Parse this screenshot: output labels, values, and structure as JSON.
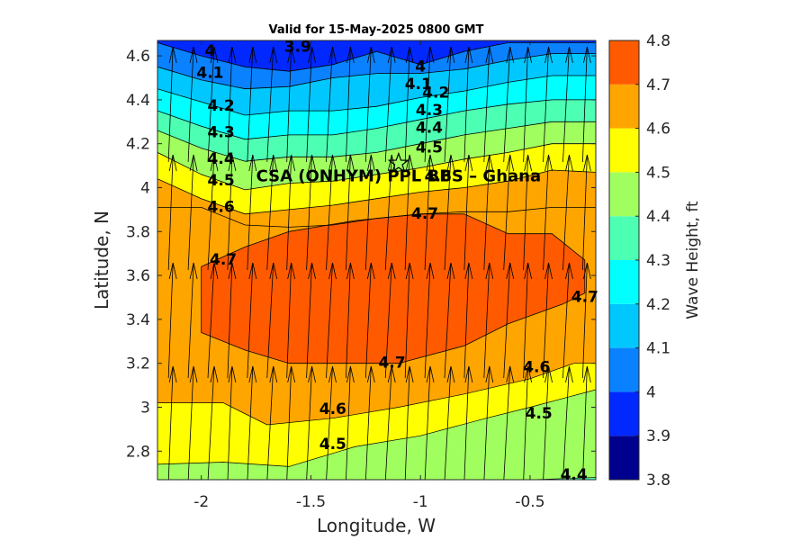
{
  "chart_data": {
    "type": "heatmap",
    "subtype": "filled contour with wave direction arrows",
    "title": "Valid for 15-May-2025 0800 GMT",
    "xlabel": "Longitude, W",
    "ylabel": "Latitude, N",
    "colorbar_label": "Wave Height, ft",
    "xlim": [
      -2.2,
      -0.2
    ],
    "ylim": [
      2.67,
      4.67
    ],
    "x_ticks": [
      -2,
      -1.5,
      -1,
      -0.5
    ],
    "x_tick_labels": [
      "-2",
      "-1.5",
      "-1",
      "-0.5"
    ],
    "y_ticks": [
      2.8,
      3.0,
      3.2,
      3.4,
      3.6,
      3.8,
      4.0,
      4.2,
      4.4,
      4.6
    ],
    "y_tick_labels": [
      "2.8",
      "3",
      "3.2",
      "3.4",
      "3.6",
      "3.8",
      "4",
      "4.2",
      "4.4",
      "4.6"
    ],
    "colorbar_levels": [
      3.8,
      3.9,
      4.0,
      4.1,
      4.2,
      4.3,
      4.4,
      4.5,
      4.6,
      4.7,
      4.8
    ],
    "colorbar_tick_labels": [
      "3.8",
      "3.9",
      "4",
      "4.1",
      "4.2",
      "4.3",
      "4.4",
      "4.5",
      "4.6",
      "4.7",
      "4.8"
    ],
    "colors": [
      "#00008f",
      "#0028ff",
      "#0a82ff",
      "#00c8ff",
      "#00ffff",
      "#4dffb3",
      "#a0ff5f",
      "#ffff00",
      "#ffa500",
      "#ff5a00"
    ],
    "site_label": "CSA (ONHYM) PPL BBS – Ghana",
    "site_location": {
      "lon": -1.1,
      "lat": 4.11
    },
    "contour_levels_bands": {
      "3.9": {
        "x": [
          -2.2,
          -2.0,
          -1.8,
          -1.6,
          -1.4,
          -1.2,
          -1.0,
          -0.8,
          -0.6,
          -0.4,
          -0.2
        ],
        "y": [
          4.75,
          4.75,
          4.75,
          4.72,
          4.72,
          4.72,
          4.72,
          4.75,
          4.75,
          4.75,
          4.75
        ]
      },
      "4.0": {
        "x": [
          -2.2,
          -2.0,
          -1.8,
          -1.6,
          -1.4,
          -1.2,
          -1.0,
          -0.8,
          -0.6,
          -0.4,
          -0.2
        ],
        "y": [
          4.66,
          4.6,
          4.55,
          4.53,
          4.56,
          4.62,
          4.56,
          4.62,
          4.66,
          4.66,
          4.66
        ]
      },
      "4.1": {
        "x": [
          -2.2,
          -2.0,
          -1.8,
          -1.6,
          -1.4,
          -1.2,
          -1.0,
          -0.8,
          -0.6,
          -0.4,
          -0.2
        ],
        "y": [
          4.55,
          4.49,
          4.45,
          4.46,
          4.5,
          4.52,
          4.52,
          4.54,
          4.58,
          4.61,
          4.61
        ]
      },
      "4.2": {
        "x": [
          -2.2,
          -2.0,
          -1.8,
          -1.6,
          -1.4,
          -1.2,
          -1.0,
          -0.8,
          -0.6,
          -0.4,
          -0.2
        ],
        "y": [
          4.45,
          4.39,
          4.33,
          4.35,
          4.35,
          4.37,
          4.41,
          4.44,
          4.48,
          4.51,
          4.51
        ]
      },
      "4.3": {
        "x": [
          -2.2,
          -2.0,
          -1.8,
          -1.6,
          -1.4,
          -1.2,
          -1.0,
          -0.8,
          -0.6,
          -0.4,
          -0.2
        ],
        "y": [
          4.35,
          4.28,
          4.22,
          4.24,
          4.24,
          4.27,
          4.31,
          4.35,
          4.38,
          4.4,
          4.4
        ]
      },
      "4.4": {
        "x": [
          -2.2,
          -2.0,
          -1.8,
          -1.6,
          -1.4,
          -1.2,
          -1.0,
          -0.8,
          -0.6,
          -0.4,
          -0.2
        ],
        "y": [
          4.26,
          4.18,
          4.12,
          4.14,
          4.14,
          4.16,
          4.2,
          4.24,
          4.27,
          4.3,
          4.3
        ]
      },
      "4.5": {
        "x": [
          -2.2,
          -2.0,
          -1.8,
          -1.6,
          -1.4,
          -1.2,
          -1.0,
          -0.8,
          -0.6,
          -0.4,
          -0.2
        ],
        "y": [
          4.16,
          4.06,
          3.99,
          4.02,
          4.03,
          4.06,
          4.09,
          4.13,
          4.16,
          4.2,
          4.2
        ]
      },
      "4.6": {
        "x": [
          -2.2,
          -2.0,
          -1.8,
          -1.6,
          -1.4,
          -1.2,
          -1.0,
          -0.8,
          -0.6,
          -0.4,
          -0.2
        ],
        "y": [
          4.04,
          3.95,
          3.88,
          3.9,
          3.92,
          3.95,
          3.98,
          4.0,
          4.03,
          4.08,
          4.07
        ]
      },
      "4.7": {
        "x": [
          -2.2,
          -2.0,
          -1.8,
          -1.6,
          -1.4,
          -1.2,
          -1.0,
          -0.8,
          -0.6,
          -0.4,
          -0.2
        ],
        "y": [
          3.91,
          3.91,
          3.83,
          3.82,
          3.83,
          3.86,
          3.88,
          3.89,
          3.89,
          3.91,
          3.91
        ]
      }
    },
    "contour_labels": [
      {
        "text": "3.9",
        "lon": -1.56,
        "lat": 4.64
      },
      {
        "text": "4",
        "lon": -1.96,
        "lat": 4.62
      },
      {
        "text": "4",
        "lon": -1.0,
        "lat": 4.55
      },
      {
        "text": "4.1",
        "lon": -1.96,
        "lat": 4.52
      },
      {
        "text": "4.1",
        "lon": -1.01,
        "lat": 4.47
      },
      {
        "text": "4.2",
        "lon": -0.93,
        "lat": 4.43
      },
      {
        "text": "4.2",
        "lon": -1.91,
        "lat": 4.37
      },
      {
        "text": "4.3",
        "lon": -0.96,
        "lat": 4.35
      },
      {
        "text": "4.3",
        "lon": -1.91,
        "lat": 4.25
      },
      {
        "text": "4.4",
        "lon": -0.96,
        "lat": 4.27
      },
      {
        "text": "4.4",
        "lon": -1.91,
        "lat": 4.13
      },
      {
        "text": "4.5",
        "lon": -0.96,
        "lat": 4.18
      },
      {
        "text": "4.5",
        "lon": -1.91,
        "lat": 4.03
      },
      {
        "text": "4.6",
        "lon": -0.92,
        "lat": 4.05
      },
      {
        "text": "4.6",
        "lon": -1.91,
        "lat": 3.91
      },
      {
        "text": "4.7",
        "lon": -0.98,
        "lat": 3.88
      },
      {
        "text": "4.7",
        "lon": -1.9,
        "lat": 3.67
      },
      {
        "text": "4.7",
        "lon": -1.13,
        "lat": 3.2
      },
      {
        "text": "4.7",
        "lon": -0.25,
        "lat": 3.5
      },
      {
        "text": "4.6",
        "lon": -0.47,
        "lat": 3.18
      },
      {
        "text": "4.6",
        "lon": -1.4,
        "lat": 2.99
      },
      {
        "text": "4.5",
        "lon": -0.46,
        "lat": 2.97
      },
      {
        "text": "4.5",
        "lon": -1.4,
        "lat": 2.83
      },
      {
        "text": "4.4",
        "lon": -0.3,
        "lat": 2.69
      }
    ],
    "arrow_direction": "northward (toward ~N-NNE)",
    "arrow_grid": {
      "lon_start": -2.15,
      "lon_step": 0.09,
      "lat_rows": [
        2.7,
        3.3,
        3.9,
        4.45
      ]
    }
  }
}
